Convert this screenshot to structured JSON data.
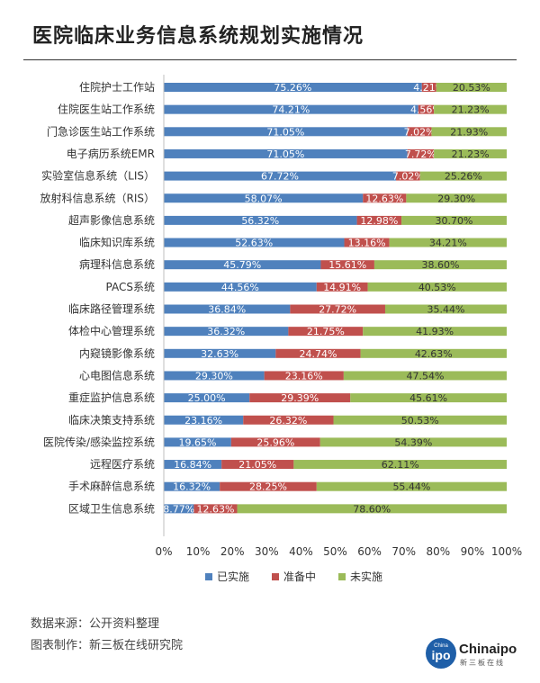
{
  "header": {
    "title": "医院临床业务信息系统规划实施情况"
  },
  "footer": {
    "source_label": "数据来源：",
    "source_value": "公开资料整理",
    "maker_label": "图表制作：",
    "maker_value": "新三板在线研究院"
  },
  "logo": {
    "mark": "ipo",
    "mark_small": "China",
    "name": "Chinaipo",
    "sub": "新三板在线"
  },
  "colors": {
    "implemented": "#4f81bd",
    "preparing": "#c0504d",
    "not_implemented": "#9bbb59"
  },
  "chart_data": {
    "type": "bar",
    "orientation": "horizontal",
    "stacked": true,
    "title": "",
    "xlabel": "",
    "ylabel": "",
    "xlim": [
      0,
      100
    ],
    "x_ticks": [
      "0%",
      "10%",
      "20%",
      "30%",
      "40%",
      "50%",
      "60%",
      "70%",
      "80%",
      "90%",
      "100%"
    ],
    "legend_position": "bottom",
    "grid": false,
    "categories": [
      "住院护士工作站",
      "住院医生站工作系统",
      "门急诊医生站工作系统",
      "电子病历系统EMR",
      "实验室信息系统（LIS）",
      "放射科信息系统（RIS）",
      "超声影像信息系统",
      "临床知识库系统",
      "病理科信息系统",
      "PACS系统",
      "临床路径管理系统",
      "体检中心管理系统",
      "内窥镜影像系统",
      "心电图信息系统",
      "重症监护信息系统",
      "临床决策支持系统",
      "医院传染/感染监控系统",
      "远程医疗系统",
      "手术麻醉信息系统",
      "区域卫生信息系统"
    ],
    "series": [
      {
        "name": "已实施",
        "color": "#4f81bd",
        "values": [
          75.26,
          74.21,
          71.05,
          71.05,
          67.72,
          58.07,
          56.32,
          52.63,
          45.79,
          44.56,
          36.84,
          36.32,
          32.63,
          29.3,
          25.0,
          23.16,
          19.65,
          16.84,
          16.32,
          8.77
        ],
        "labels": [
          "75.26%",
          "74.21%",
          "71.05%",
          "71.05%",
          "67.72%",
          "58.07%",
          "56.32%",
          "52.63%",
          "45.79%",
          "44.56%",
          "36.84%",
          "36.32%",
          "32.63%",
          "29.30%",
          "25.00%",
          "23.16%",
          "19.65%",
          "16.84%",
          "16.32%",
          "8.77%"
        ]
      },
      {
        "name": "准备中",
        "color": "#c0504d",
        "values": [
          4.21,
          4.56,
          7.02,
          7.72,
          7.02,
          12.63,
          12.98,
          13.16,
          15.61,
          14.91,
          27.72,
          21.75,
          24.74,
          23.16,
          29.39,
          26.32,
          25.96,
          21.05,
          28.25,
          12.63
        ],
        "labels": [
          "4.21%",
          "4.56%",
          "7.02%",
          "7.72%",
          "7.02%",
          "12.63%",
          "12.98%",
          "13.16%",
          "15.61%",
          "14.91%",
          "27.72%",
          "21.75%",
          "24.74%",
          "23.16%",
          "29.39%",
          "26.32%",
          "25.96%",
          "21.05%",
          "28.25%",
          "12.63%"
        ]
      },
      {
        "name": "未实施",
        "color": "#9bbb59",
        "values": [
          20.53,
          21.23,
          21.93,
          21.23,
          25.26,
          29.3,
          30.7,
          34.21,
          38.6,
          40.53,
          35.44,
          41.93,
          42.63,
          47.54,
          45.61,
          50.53,
          54.39,
          62.11,
          55.44,
          78.6
        ],
        "labels": [
          "20.53%",
          "21.23%",
          "21.93%",
          "21.23%",
          "25.26%",
          "29.30%",
          "30.70%",
          "34.21%",
          "38.60%",
          "40.53%",
          "35.44%",
          "41.93%",
          "42.63%",
          "47.54%",
          "45.61%",
          "50.53%",
          "54.39%",
          "62.11%",
          "55.44%",
          "78.60%"
        ]
      }
    ]
  }
}
